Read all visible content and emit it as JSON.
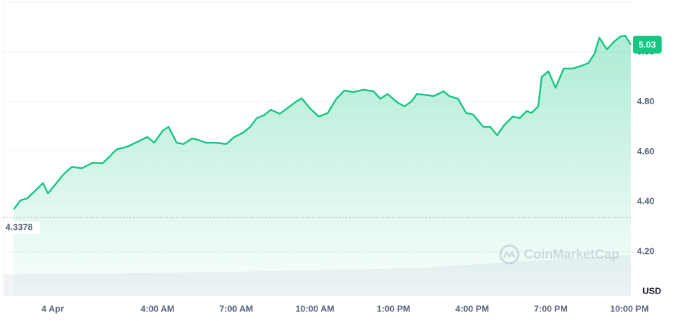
{
  "chart_data": {
    "type": "area-line",
    "color": "#16c784",
    "x": [
      -1.49,
      -1.23,
      -0.97,
      -0.71,
      -0.37,
      -0.18,
      0.08,
      0.39,
      0.73,
      1.12,
      1.52,
      1.91,
      2.17,
      2.43,
      2.82,
      3.22,
      3.61,
      3.87,
      4.21,
      4.42,
      4.73,
      4.99,
      5.31,
      5.57,
      5.83,
      6.23,
      6.62,
      6.93,
      7.27,
      7.53,
      7.79,
      8.06,
      8.32,
      8.66,
      8.97,
      9.29,
      9.5,
      9.81,
      10.15,
      10.49,
      10.8,
      11.12,
      11.46,
      11.85,
      12.24,
      12.5,
      12.77,
      13.16,
      13.42,
      13.68,
      13.89,
      14.2,
      14.54,
      14.91,
      15.12,
      15.46,
      15.77,
      16.03,
      16.43,
      16.69,
      16.95,
      17.21,
      17.55,
      17.82,
      18.08,
      18.26,
      18.52,
      18.65,
      18.91,
      19.18,
      19.49,
      19.83,
      20.17,
      20.43,
      20.67,
      20.85,
      21.14,
      21.4,
      21.66,
      21.84,
      22.05
    ],
    "values": [
      4.37,
      4.406,
      4.414,
      4.44,
      4.475,
      4.434,
      4.467,
      4.508,
      4.54,
      4.535,
      4.557,
      4.555,
      4.582,
      4.61,
      4.62,
      4.64,
      4.66,
      4.637,
      4.687,
      4.7,
      4.637,
      4.632,
      4.654,
      4.648,
      4.637,
      4.637,
      4.632,
      4.66,
      4.678,
      4.7,
      4.736,
      4.747,
      4.769,
      4.753,
      4.777,
      4.802,
      4.815,
      4.775,
      4.742,
      4.756,
      4.81,
      4.846,
      4.84,
      4.849,
      4.843,
      4.813,
      4.832,
      4.797,
      4.783,
      4.802,
      4.832,
      4.829,
      4.824,
      4.843,
      4.824,
      4.813,
      4.756,
      4.75,
      4.7,
      4.7,
      4.667,
      4.706,
      4.742,
      4.736,
      4.764,
      4.756,
      4.783,
      4.901,
      4.923,
      4.857,
      4.934,
      4.934,
      4.945,
      4.956,
      4.994,
      5.058,
      5.011,
      5.041,
      5.063,
      5.066,
      5.03
    ],
    "xlim": [
      -1.88,
      22.05
    ],
    "xticks": [
      {
        "value": 0,
        "label": "4 Apr"
      },
      {
        "value": 4,
        "label": "4:00 AM"
      },
      {
        "value": 7,
        "label": "7:00 AM"
      },
      {
        "value": 10,
        "label": "10:00 AM"
      },
      {
        "value": 13,
        "label": "1:00 PM"
      },
      {
        "value": 16,
        "label": "4:00 PM"
      },
      {
        "value": 19,
        "label": "7:00 PM"
      },
      {
        "value": 22,
        "label": "10:00 PM"
      }
    ],
    "ylim": [
      4.02,
      5.2
    ],
    "yticks": [
      {
        "value": 4.2,
        "label": "4.20"
      },
      {
        "value": 4.4,
        "label": "4.40"
      },
      {
        "value": 4.6,
        "label": "4.60"
      },
      {
        "value": 4.8,
        "label": "4.80"
      },
      {
        "value": 5.0,
        "label": "5.00"
      }
    ],
    "grid": true,
    "reference_line": 4.3378,
    "y_unit": "USD",
    "watermark": "CoinMarketCap"
  }
}
